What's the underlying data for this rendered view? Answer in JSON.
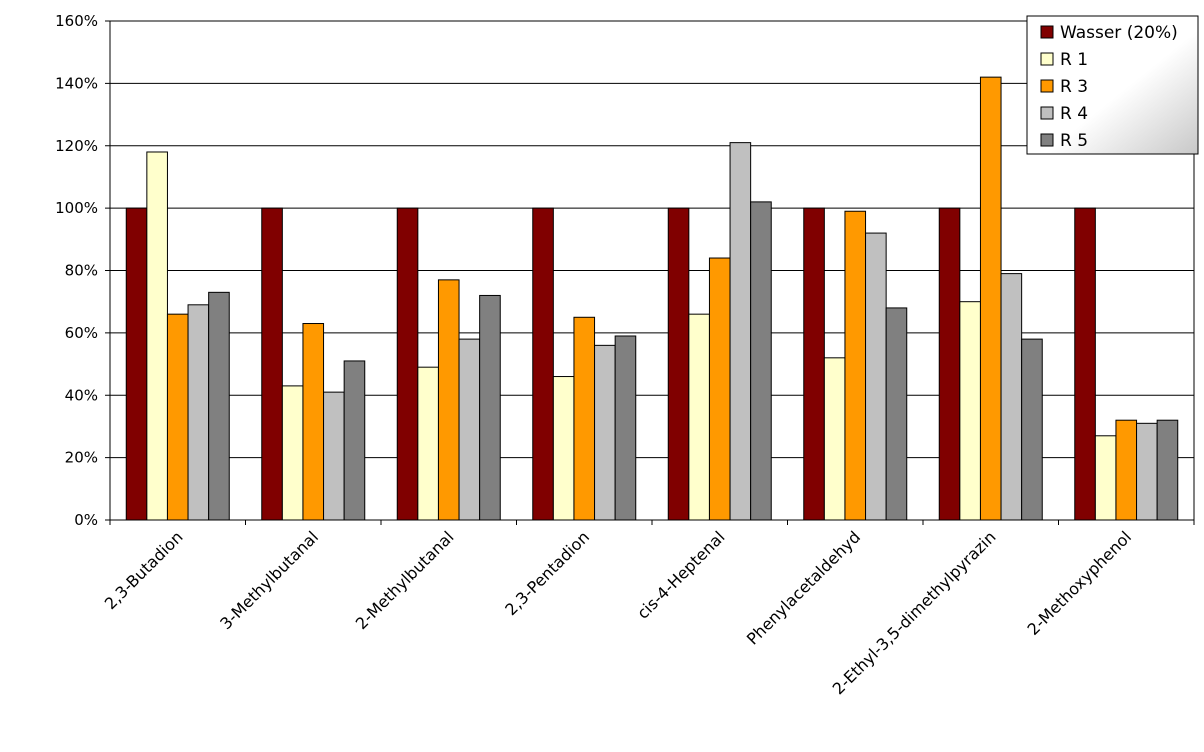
{
  "chart_data": {
    "type": "bar",
    "title": "",
    "xlabel": "",
    "ylabel": "",
    "ylim": [
      0,
      160
    ],
    "yticks": [
      0,
      20,
      40,
      60,
      80,
      100,
      120,
      140,
      160
    ],
    "ytick_suffix": "%",
    "grid": true,
    "legend_position": "top-right",
    "categories": [
      "2,3-Butadion",
      "3-Methylbutanal",
      "2-Methylbutanal",
      "2,3-Pentadion",
      "cis-4-Heptenal",
      "Phenylacetaldehyd",
      "2-Ethyl-3,5-dimethylpyrazin",
      "2-Methoxyphenol"
    ],
    "series": [
      {
        "name": "Wasser (20%)",
        "color": "#800000",
        "values": [
          100,
          100,
          100,
          100,
          100,
          100,
          100,
          100
        ]
      },
      {
        "name": "R 1",
        "color": "#FFFFCC",
        "values": [
          118,
          43,
          49,
          46,
          66,
          52,
          70,
          27
        ]
      },
      {
        "name": "R 3",
        "color": "#FF9900",
        "values": [
          66,
          63,
          77,
          65,
          84,
          99,
          142,
          32
        ]
      },
      {
        "name": "R 4",
        "color": "#C0C0C0",
        "values": [
          69,
          41,
          58,
          56,
          121,
          92,
          79,
          31
        ]
      },
      {
        "name": "R 5",
        "color": "#808080",
        "values": [
          73,
          51,
          72,
          59,
          102,
          68,
          58,
          32
        ]
      }
    ]
  }
}
